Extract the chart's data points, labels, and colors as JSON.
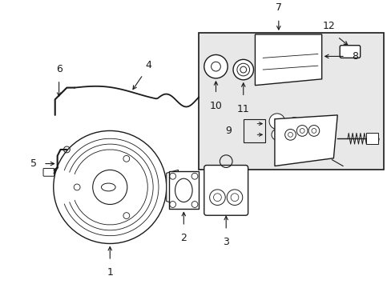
{
  "bg_color": "#ffffff",
  "line_color": "#1a1a1a",
  "box_bg": "#e8e8e8",
  "fig_width": 4.89,
  "fig_height": 3.6
}
